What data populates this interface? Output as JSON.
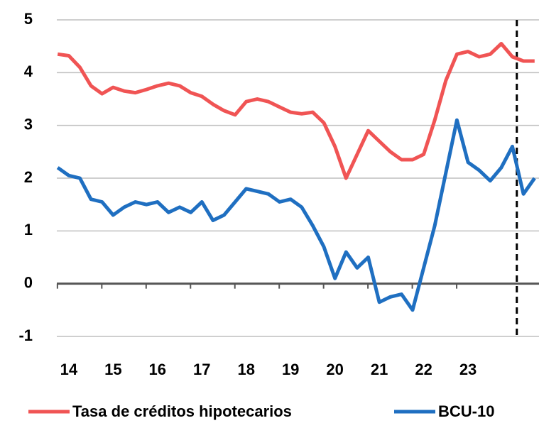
{
  "chart_data": {
    "type": "line",
    "x": [
      13.75,
      14,
      14.25,
      14.5,
      14.75,
      15,
      15.25,
      15.5,
      15.75,
      16,
      16.25,
      16.5,
      16.75,
      17,
      17.25,
      17.5,
      17.75,
      18,
      18.25,
      18.5,
      18.75,
      19,
      19.25,
      19.5,
      19.75,
      20,
      20.25,
      20.5,
      20.75,
      21,
      21.25,
      21.5,
      21.75,
      22,
      22.25,
      22.5,
      22.75,
      23,
      23.25,
      23.5,
      23.75,
      24,
      24.25,
      24.5
    ],
    "series": [
      {
        "name": "Tasa de créditos hipotecarios",
        "color": "#f05454",
        "values": [
          4.35,
          4.32,
          4.1,
          3.75,
          3.6,
          3.72,
          3.65,
          3.62,
          3.68,
          3.75,
          3.8,
          3.75,
          3.62,
          3.55,
          3.4,
          3.28,
          3.2,
          3.45,
          3.5,
          3.45,
          3.35,
          3.25,
          3.22,
          3.25,
          3.05,
          2.6,
          2.0,
          2.45,
          2.9,
          2.7,
          2.5,
          2.35,
          2.35,
          2.45,
          3.1,
          3.85,
          4.35,
          4.4,
          4.3,
          4.35,
          4.55,
          4.3,
          4.22,
          4.22
        ]
      },
      {
        "name": "BCU-10",
        "color": "#1f6fc1",
        "values": [
          2.2,
          2.05,
          2.0,
          1.6,
          1.55,
          1.3,
          1.45,
          1.55,
          1.5,
          1.55,
          1.35,
          1.45,
          1.35,
          1.55,
          1.2,
          1.3,
          1.55,
          1.8,
          1.75,
          1.7,
          1.55,
          1.6,
          1.45,
          1.1,
          0.7,
          0.1,
          0.6,
          0.3,
          0.5,
          -0.35,
          -0.25,
          -0.2,
          -0.5,
          0.3,
          1.1,
          2.1,
          3.1,
          2.3,
          2.15,
          1.95,
          2.2,
          2.6,
          1.7,
          2.0
        ]
      }
    ],
    "xlim": [
      13.73,
      24.6
    ],
    "xticks": [
      14,
      15,
      16,
      17,
      18,
      19,
      20,
      21,
      22,
      23
    ],
    "ylim": [
      -1,
      5
    ],
    "yticks": [
      -1,
      0,
      1,
      2,
      3,
      4,
      5
    ],
    "vline": 24.1,
    "grid": true
  }
}
